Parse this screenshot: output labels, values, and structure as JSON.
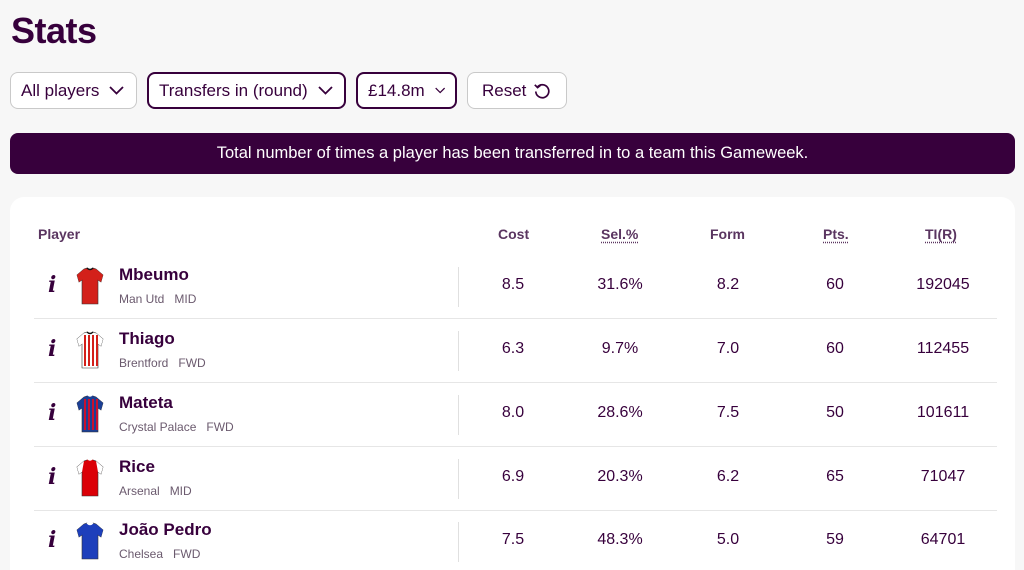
{
  "page": {
    "title": "Stats"
  },
  "filters": {
    "players": "All players",
    "stat": "Transfers in (round)",
    "price": "£14.8m",
    "reset": "Reset"
  },
  "banner": "Total number of times a player has been transferred in to a team this Gameweek.",
  "table": {
    "headers": {
      "player": "Player",
      "cost": "Cost",
      "sel": "Sel.%",
      "form": "Form",
      "pts": "Pts.",
      "ti": "TI(R)"
    },
    "rows": [
      {
        "name": "Mbeumo",
        "team": "Man Utd",
        "pos": "MID",
        "cost": "8.5",
        "sel": "31.6%",
        "form": "8.2",
        "pts": "60",
        "ti": "192045",
        "kit": "man-utd-shirt",
        "kit_colors": [
          "#d3201a",
          "#d3201a",
          "#111111"
        ]
      },
      {
        "name": "Thiago",
        "team": "Brentford",
        "pos": "FWD",
        "cost": "6.3",
        "sel": "9.7%",
        "form": "7.0",
        "pts": "60",
        "ti": "112455",
        "kit": "brentford-shirt",
        "kit_colors": [
          "#ffffff",
          "#d3201a",
          "#111111"
        ]
      },
      {
        "name": "Mateta",
        "team": "Crystal Palace",
        "pos": "FWD",
        "cost": "8.0",
        "sel": "28.6%",
        "form": "7.5",
        "pts": "50",
        "ti": "101611",
        "kit": "crystal-palace-shirt",
        "kit_colors": [
          "#1b3f94",
          "#c8102e",
          "#1b3f94"
        ]
      },
      {
        "name": "Rice",
        "team": "Arsenal",
        "pos": "MID",
        "cost": "6.9",
        "sel": "20.3%",
        "form": "6.2",
        "pts": "65",
        "ti": "71047",
        "kit": "arsenal-shirt",
        "kit_colors": [
          "#db0007",
          "#ffffff",
          "#db0007"
        ]
      },
      {
        "name": "João Pedro",
        "team": "Chelsea",
        "pos": "FWD",
        "cost": "7.5",
        "sel": "48.3%",
        "form": "5.0",
        "pts": "59",
        "ti": "64701",
        "kit": "chelsea-shirt",
        "kit_colors": [
          "#1d3fbb",
          "#1d3fbb",
          "#ffffff"
        ]
      }
    ]
  }
}
